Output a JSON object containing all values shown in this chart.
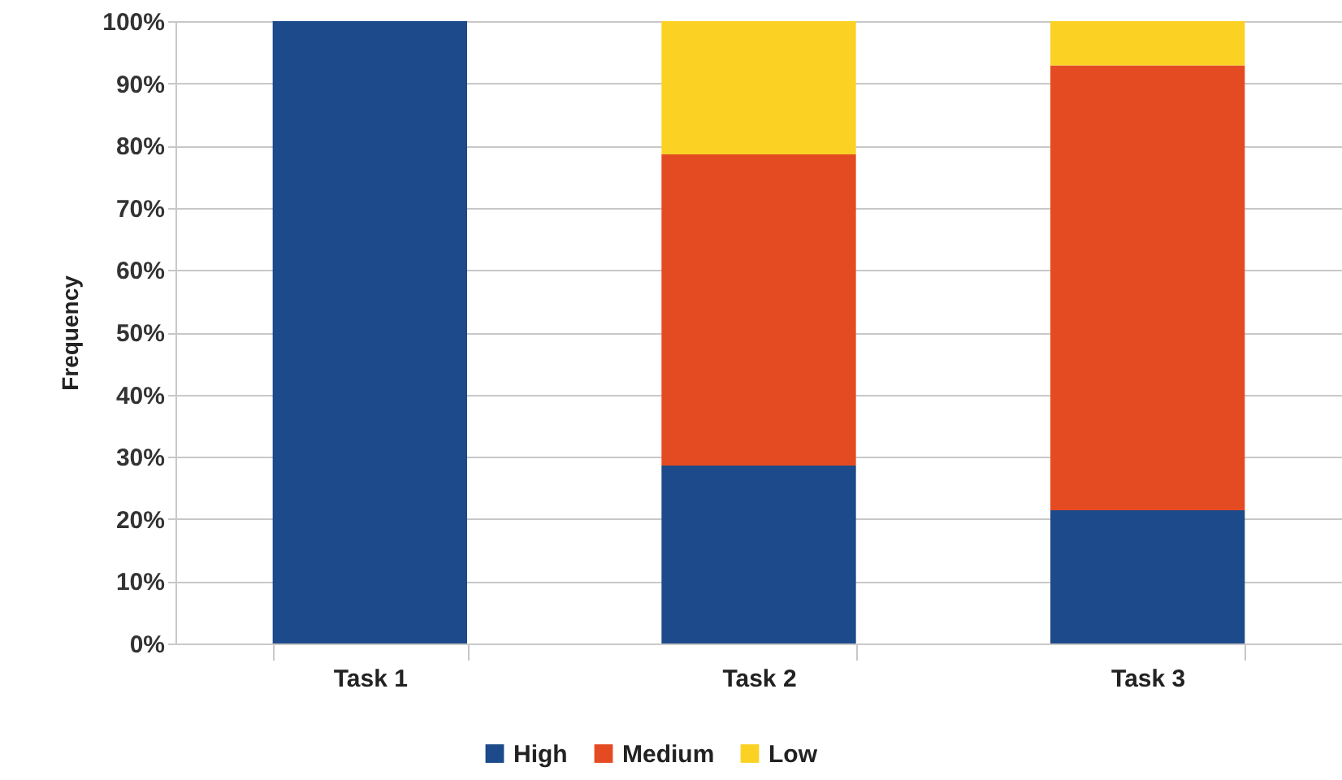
{
  "chart_data": {
    "type": "bar",
    "ylabel": "Frequency",
    "categories": [
      "Task 1",
      "Task 2",
      "Task 3"
    ],
    "stacked": true,
    "series": [
      {
        "name": "High",
        "color": "#1c4a8a",
        "values": [
          100,
          28.6,
          21.4
        ]
      },
      {
        "name": "Medium",
        "color": "#e54b22",
        "values": [
          0,
          50,
          71.5
        ]
      },
      {
        "name": "Low",
        "color": "#fbd224",
        "values": [
          0,
          21.4,
          7.1
        ]
      }
    ],
    "ylim": [
      0,
      100
    ],
    "yticks": [
      {
        "value": 0,
        "label": "0%"
      },
      {
        "value": 10,
        "label": "10%"
      },
      {
        "value": 20,
        "label": "20%"
      },
      {
        "value": 30,
        "label": "30%"
      },
      {
        "value": 40,
        "label": "40%"
      },
      {
        "value": 50,
        "label": "50%"
      },
      {
        "value": 60,
        "label": "60%"
      },
      {
        "value": 70,
        "label": "70%"
      },
      {
        "value": 80,
        "label": "80%"
      },
      {
        "value": 90,
        "label": "90%"
      },
      {
        "value": 100,
        "label": "100%"
      }
    ],
    "grid": "y",
    "legend": "bottom"
  }
}
